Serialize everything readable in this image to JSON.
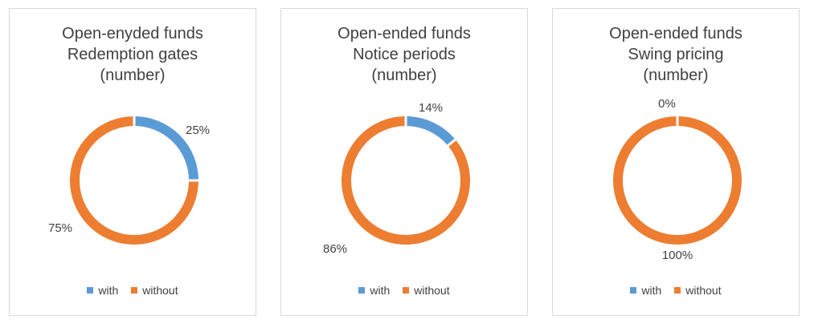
{
  "colors": {
    "with": "#5b9bd5",
    "without": "#ed7d31"
  },
  "chart_data": [
    {
      "type": "pie",
      "title": [
        "Open-enyded funds",
        "Redemption gates",
        "(number)"
      ],
      "categories": [
        "with",
        "without"
      ],
      "values": [
        25,
        75
      ],
      "labels": [
        "25%",
        "75%"
      ],
      "legend": "bottom"
    },
    {
      "type": "pie",
      "title": [
        "Open-ended funds",
        "Notice periods",
        "(number)"
      ],
      "categories": [
        "with",
        "without"
      ],
      "values": [
        14,
        86
      ],
      "labels": [
        "14%",
        "86%"
      ],
      "legend": "bottom"
    },
    {
      "type": "pie",
      "title": [
        "Open-ended funds",
        "Swing pricing",
        "(number)"
      ],
      "categories": [
        "with",
        "without"
      ],
      "values": [
        0,
        100
      ],
      "labels": [
        "0%",
        "100%"
      ],
      "legend": "bottom"
    }
  ]
}
